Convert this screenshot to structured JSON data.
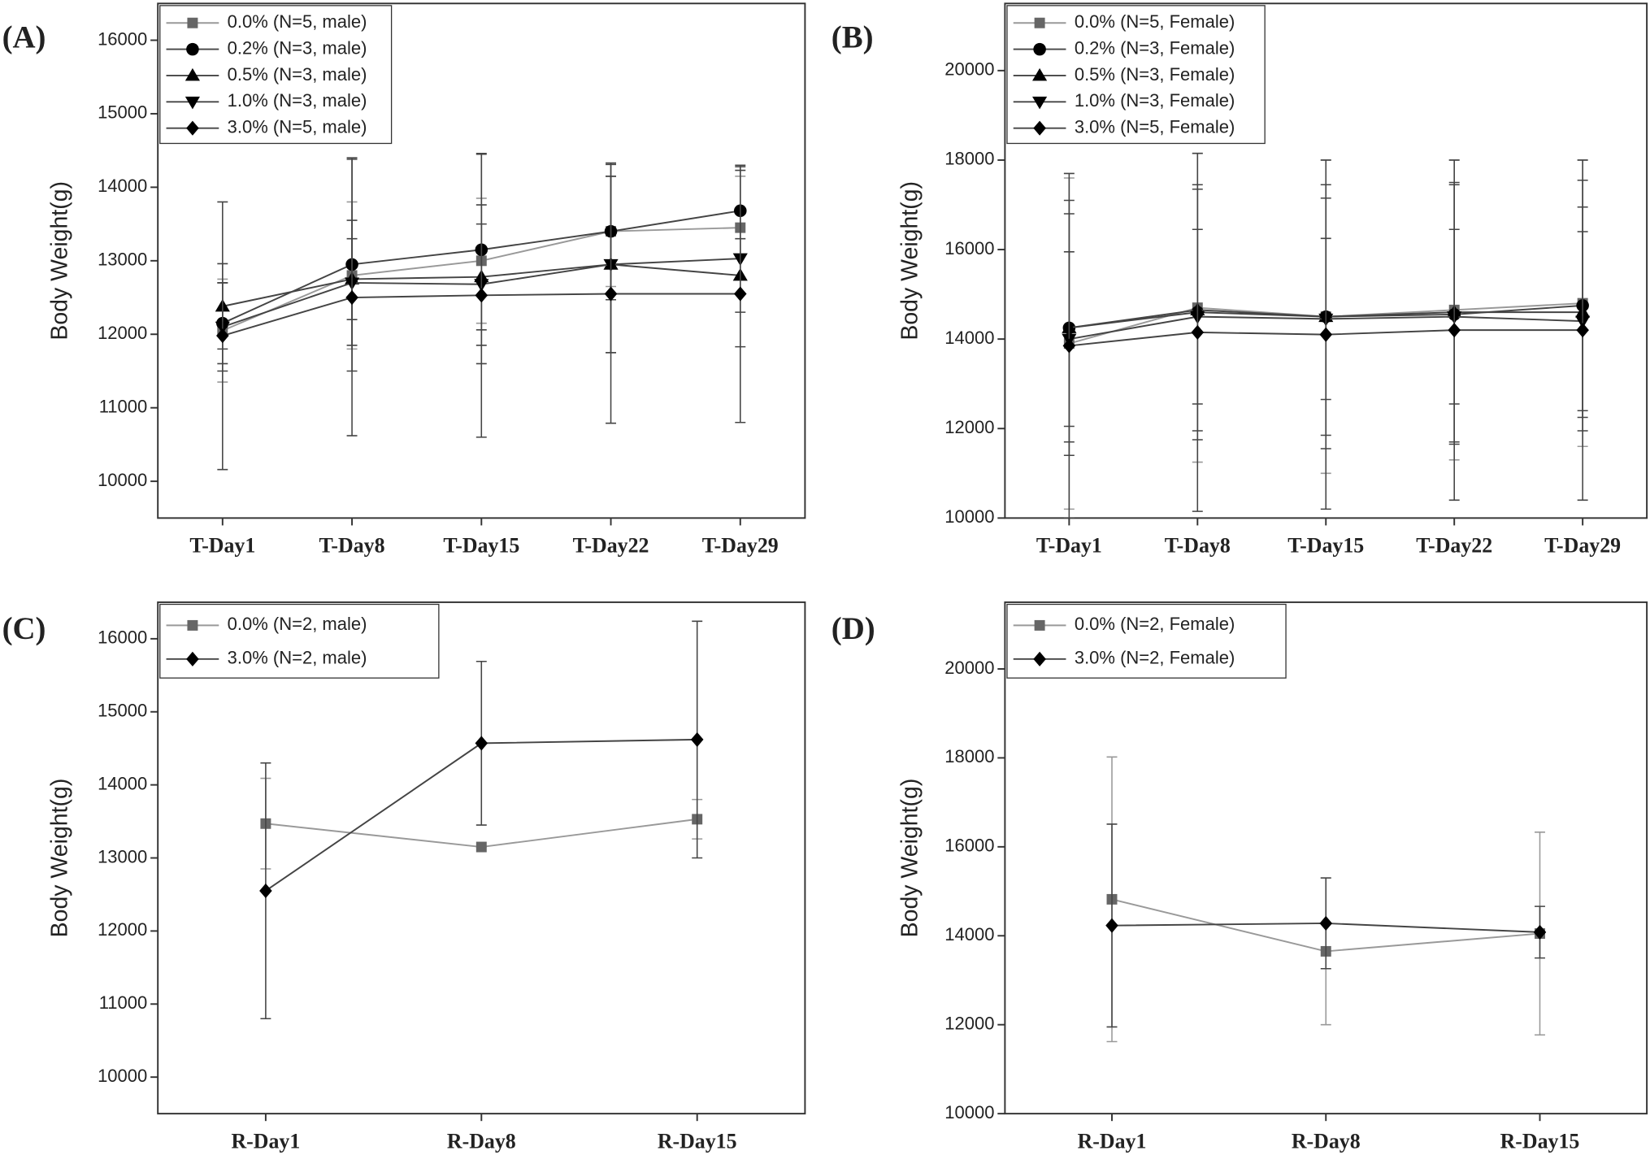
{
  "chart_data": [
    {
      "type": "line",
      "panel_label": "(A)",
      "y_label": "Body Weight(g)",
      "categories": [
        "T-Day1",
        "T-Day8",
        "T-Day15",
        "T-Day22",
        "T-Day29"
      ],
      "ylim": [
        9500,
        16500
      ],
      "yticks": [
        10000,
        11000,
        12000,
        13000,
        14000,
        15000,
        16000
      ],
      "series": [
        {
          "name": "0.0% (N=5, male)",
          "color": "#666666",
          "line_color": "#999999",
          "marker": "square",
          "values": [
            12050,
            12800,
            13000,
            13400,
            13450
          ],
          "errors": [
            700,
            1000,
            850,
            750,
            700
          ]
        },
        {
          "name": "0.2% (N=3, male)",
          "color": "#000000",
          "line_color": "#444444",
          "marker": "circle",
          "values": [
            12150,
            12950,
            13150,
            13400,
            13680
          ],
          "errors": [
            550,
            1450,
            1300,
            930,
            600
          ]
        },
        {
          "name": "0.5% (N=3, male)",
          "color": "#000000",
          "line_color": "#444444",
          "marker": "triangle",
          "values": [
            12380,
            12750,
            12780,
            12950,
            12800
          ],
          "errors": [
            580,
            550,
            720,
            1200,
            500
          ]
        },
        {
          "name": "1.0% (N=3, male)",
          "color": "#000000",
          "line_color": "#444444",
          "marker": "triangle-down",
          "values": [
            12100,
            12700,
            12680,
            12950,
            13030
          ],
          "errors": [
            600,
            850,
            1080,
            1200,
            1200
          ]
        },
        {
          "name": "3.0% (N=5, male)",
          "color": "#000000",
          "line_color": "#444444",
          "marker": "diamond",
          "values": [
            11980,
            12500,
            12530,
            12550,
            12550
          ],
          "errors": [
            1820,
            1880,
            1930,
            1760,
            1750
          ]
        }
      ]
    },
    {
      "type": "line",
      "panel_label": "(B)",
      "y_label": "Body Weight(g)",
      "categories": [
        "T-Day1",
        "T-Day8",
        "T-Day15",
        "T-Day22",
        "T-Day29"
      ],
      "ylim": [
        10000,
        21500
      ],
      "yticks": [
        10000,
        12000,
        14000,
        16000,
        18000,
        20000
      ],
      "series": [
        {
          "name": "0.0% (N=5, Female)",
          "color": "#666666",
          "line_color": "#999999",
          "marker": "square",
          "values": [
            13900,
            14700,
            14500,
            14650,
            14800
          ],
          "errors": [
            3700,
            3450,
            3500,
            3350,
            3200
          ]
        },
        {
          "name": "0.2% (N=3, Female)",
          "color": "#000000",
          "line_color": "#444444",
          "marker": "circle",
          "values": [
            14250,
            14600,
            14500,
            14550,
            14750
          ],
          "errors": [
            2850,
            2850,
            2950,
            2900,
            2800
          ]
        },
        {
          "name": "0.5% (N=3, Female)",
          "color": "#000000",
          "line_color": "#444444",
          "marker": "triangle",
          "values": [
            14250,
            14650,
            14500,
            14600,
            14600
          ],
          "errors": [
            2550,
            2700,
            2650,
            2900,
            2350
          ]
        },
        {
          "name": "1.0% (N=3, Female)",
          "color": "#000000",
          "line_color": "#444444",
          "marker": "triangle-down",
          "values": [
            14000,
            14500,
            14450,
            14500,
            14400
          ],
          "errors": [
            1950,
            1950,
            1800,
            1950,
            2000
          ]
        },
        {
          "name": "3.0% (N=5, Female)",
          "color": "#000000",
          "line_color": "#444444",
          "marker": "diamond",
          "values": [
            13850,
            14150,
            14100,
            14200,
            14200
          ],
          "errors": [
            3850,
            4000,
            3900,
            3800,
            3800
          ]
        }
      ]
    },
    {
      "type": "line",
      "panel_label": "(C)",
      "y_label": "Body Weight(g)",
      "categories": [
        "R-Day1",
        "R-Day8",
        "R-Day15"
      ],
      "ylim": [
        9500,
        16500
      ],
      "yticks": [
        10000,
        11000,
        12000,
        13000,
        14000,
        15000,
        16000
      ],
      "series": [
        {
          "name": "0.0% (N=2, male)",
          "color": "#666666",
          "line_color": "#999999",
          "marker": "square",
          "values": [
            13470,
            13150,
            13530
          ],
          "errors": [
            620,
            0,
            270
          ]
        },
        {
          "name": "3.0% (N=2, male)",
          "color": "#000000",
          "line_color": "#444444",
          "marker": "diamond",
          "values": [
            12550,
            14570,
            14620
          ],
          "errors": [
            1750,
            1120,
            1620
          ]
        }
      ]
    },
    {
      "type": "line",
      "panel_label": "(D)",
      "y_label": "Body Weight(g)",
      "categories": [
        "R-Day1",
        "R-Day8",
        "R-Day15"
      ],
      "ylim": [
        10000,
        21500
      ],
      "yticks": [
        10000,
        12000,
        14000,
        16000,
        18000,
        20000
      ],
      "series": [
        {
          "name": "0.0% (N=2, Female)",
          "color": "#666666",
          "line_color": "#999999",
          "marker": "square",
          "values": [
            14820,
            13650,
            14050
          ],
          "errors": [
            3200,
            1650,
            2280
          ]
        },
        {
          "name": "3.0% (N=2, Female)",
          "color": "#000000",
          "line_color": "#444444",
          "marker": "diamond",
          "values": [
            14230,
            14280,
            14080
          ],
          "errors": [
            2280,
            1020,
            580
          ]
        }
      ]
    }
  ]
}
